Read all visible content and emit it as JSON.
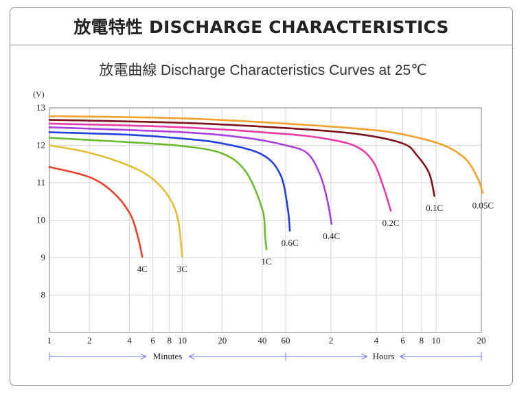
{
  "header": {
    "title": "放電特性 DISCHARGE CHARACTERISTICS"
  },
  "chart_data": {
    "type": "line",
    "title": "放電曲線 Discharge Characteristics Curves at 25℃",
    "ylabel": "(V)",
    "ylim": [
      7,
      13
    ],
    "y_ticks": [
      8,
      9,
      10,
      11,
      12,
      13
    ],
    "x_scale": "log",
    "x_segments": [
      {
        "label": "Minutes",
        "range": [
          1,
          60
        ],
        "ticks": [
          "1",
          "2",
          "4",
          "6",
          "8",
          "10",
          "20",
          "40",
          "60"
        ]
      },
      {
        "label": "Hours",
        "range": [
          1,
          20
        ],
        "ticks": [
          "2",
          "4",
          "6",
          "8",
          "10",
          "20"
        ]
      }
    ],
    "series": [
      {
        "name": "4C",
        "color": "#e8432a",
        "points": [
          [
            1,
            11.42
          ],
          [
            2,
            11.15
          ],
          [
            3,
            10.75
          ],
          [
            4,
            10.2
          ],
          [
            4.6,
            9.6
          ],
          [
            5,
            9.02
          ]
        ]
      },
      {
        "name": "3C",
        "color": "#e2be36",
        "points": [
          [
            1,
            12.0
          ],
          [
            2,
            11.8
          ],
          [
            4,
            11.45
          ],
          [
            6,
            11.1
          ],
          [
            8,
            10.6
          ],
          [
            9.3,
            10.0
          ],
          [
            10,
            9.02
          ]
        ]
      },
      {
        "name": "1C",
        "color": "#6cbb2f",
        "points": [
          [
            1,
            12.2
          ],
          [
            4,
            12.08
          ],
          [
            10,
            11.98
          ],
          [
            20,
            11.78
          ],
          [
            30,
            11.3
          ],
          [
            40,
            10.3
          ],
          [
            42,
            9.6
          ],
          [
            43,
            9.22
          ]
        ]
      },
      {
        "name": "0.6C",
        "color": "#1f3fe0",
        "points": [
          [
            1,
            12.35
          ],
          [
            4,
            12.28
          ],
          [
            10,
            12.18
          ],
          [
            20,
            12.05
          ],
          [
            40,
            11.75
          ],
          [
            55,
            11.2
          ],
          [
            62,
            10.3
          ],
          [
            64,
            9.72
          ]
        ]
      },
      {
        "name": "0.4C",
        "color": "#a83fe0",
        "points": [
          [
            1,
            12.48
          ],
          [
            10,
            12.35
          ],
          [
            30,
            12.2
          ],
          [
            60,
            12.0
          ],
          [
            84,
            11.78
          ],
          [
            102,
            11.2
          ],
          [
            114,
            10.5
          ],
          [
            121,
            9.9
          ]
        ]
      },
      {
        "name": "0.2C",
        "color": "#e83aa6",
        "points": [
          [
            1,
            12.58
          ],
          [
            10,
            12.48
          ],
          [
            60,
            12.3
          ],
          [
            120,
            12.15
          ],
          [
            180,
            11.95
          ],
          [
            230,
            11.55
          ],
          [
            270,
            10.85
          ],
          [
            300,
            10.25
          ]
        ]
      },
      {
        "name": "0.1C",
        "color": "#7b1018",
        "points": [
          [
            1,
            12.68
          ],
          [
            10,
            12.6
          ],
          [
            60,
            12.46
          ],
          [
            180,
            12.3
          ],
          [
            360,
            12.05
          ],
          [
            450,
            11.72
          ],
          [
            540,
            11.25
          ],
          [
            585,
            10.65
          ]
        ]
      },
      {
        "name": "0.05C",
        "color": "#f5a02d",
        "points": [
          [
            1,
            12.78
          ],
          [
            10,
            12.72
          ],
          [
            60,
            12.58
          ],
          [
            240,
            12.4
          ],
          [
            480,
            12.18
          ],
          [
            720,
            11.95
          ],
          [
            960,
            11.6
          ],
          [
            1140,
            11.1
          ],
          [
            1230,
            10.72
          ]
        ]
      }
    ]
  }
}
